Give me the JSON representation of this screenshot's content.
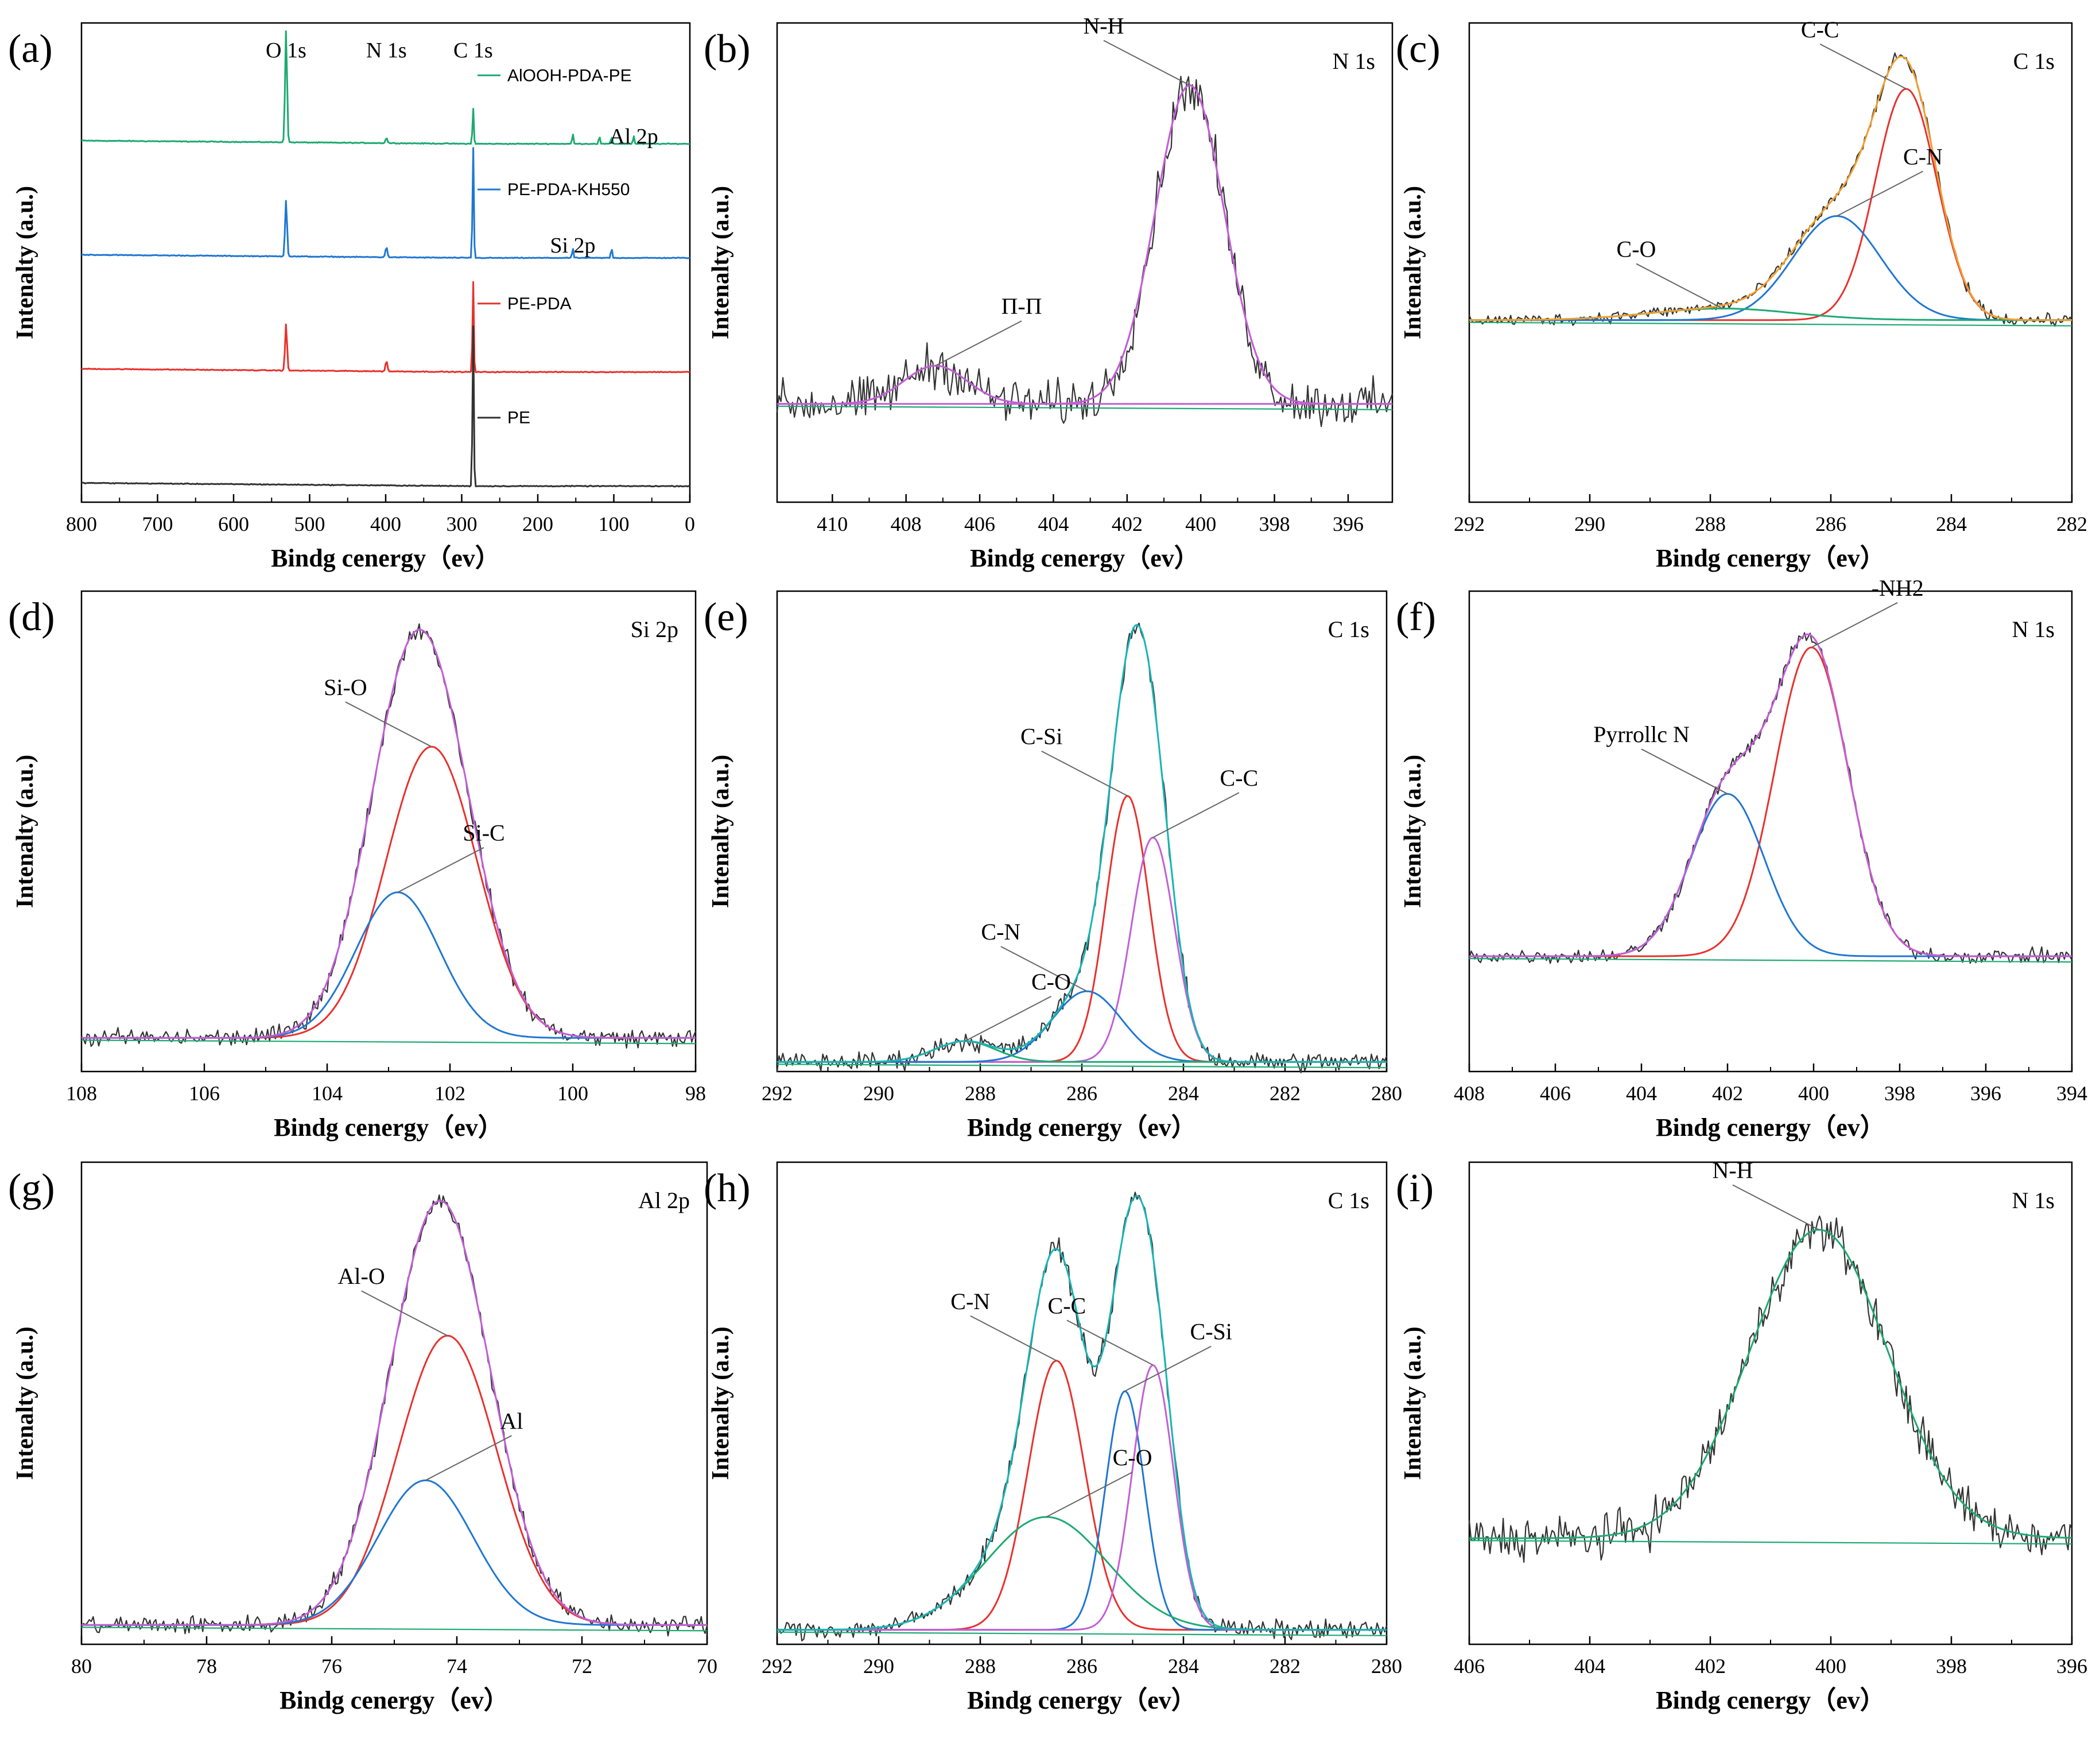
{
  "colors": {
    "black": "#222222",
    "gray": "#333333",
    "red": "#e8312c",
    "blue": "#1f77d2",
    "green": "#1daa72",
    "magenta": "#c25fd6",
    "orange": "#f0a030",
    "cyan": "#19b5b5",
    "olive": "#c8a000",
    "purple": "#a855c8"
  },
  "chart_data": [
    {
      "id": "a",
      "type": "line",
      "panel_label": "(a)",
      "xlabel": "Bindg cenergy（ev）",
      "ylabel": "Intenalty (a.u.)",
      "xlim": [
        800,
        0
      ],
      "xticks": [
        800,
        700,
        600,
        500,
        400,
        300,
        200,
        100,
        0
      ],
      "series": [
        {
          "name": "AlOOH-PDA-PE",
          "color": "green",
          "offset": 3.0,
          "peaks": [
            [
              531,
              1.1,
              3
            ],
            [
              399,
              0.05,
              3
            ],
            [
              285,
              0.35,
              2
            ],
            [
              154,
              0.1,
              2
            ],
            [
              119,
              0.08,
              2
            ],
            [
              103,
              0.07,
              2
            ],
            [
              74,
              0.08,
              2
            ]
          ]
        },
        {
          "name": "PE-PDA-KH550",
          "color": "blue",
          "offset": 2.0,
          "peaks": [
            [
              531,
              0.55,
              3
            ],
            [
              399,
              0.1,
              3
            ],
            [
              285,
              1.1,
              2
            ],
            [
              154,
              0.1,
              2
            ],
            [
              103,
              0.1,
              2
            ]
          ]
        },
        {
          "name": "PE-PDA",
          "color": "red",
          "offset": 1.0,
          "peaks": [
            [
              531,
              0.45,
              3
            ],
            [
              399,
              0.1,
              3
            ],
            [
              285,
              0.9,
              2
            ]
          ]
        },
        {
          "name": "PE",
          "color": "gray",
          "offset": 0.0,
          "peaks": [
            [
              285,
              1.6,
              2
            ]
          ]
        }
      ],
      "peak_labels": [
        {
          "text": "O 1s",
          "x": 531
        },
        {
          "text": "N 1s",
          "x": 399
        },
        {
          "text": "C 1s",
          "x": 285
        },
        {
          "text": "Al 2p",
          "x": 74
        },
        {
          "text": "Si 2p",
          "x": 154
        }
      ]
    },
    {
      "id": "b",
      "type": "line",
      "panel_label": "(b)",
      "corner_label": "N 1s",
      "xlabel": "Bindg cenergy（ev）",
      "ylabel": "Intenalty (a.u.)",
      "xlim": [
        411.5,
        394.8
      ],
      "xticks": [
        410,
        408,
        406,
        404,
        402,
        400,
        398,
        396
      ],
      "components": [
        {
          "name": "N-H",
          "center": 400.3,
          "fwhm": 2.2,
          "height": 1.0,
          "color": "magenta"
        },
        {
          "name": "Π-Π",
          "center": 407.2,
          "fwhm": 2.0,
          "height": 0.12,
          "color": "magenta"
        }
      ],
      "annotations": [
        {
          "text": "N-H",
          "x": 400.3
        },
        {
          "text": "Π-Π",
          "x": 407.2
        }
      ]
    },
    {
      "id": "c",
      "type": "line",
      "panel_label": "(c)",
      "corner_label": "C 1s",
      "xlabel": "Bindg cenergy（ev）",
      "ylabel": "Intenalty (a.u.)",
      "xlim": [
        292,
        282
      ],
      "xticks": [
        292,
        290,
        288,
        286,
        284,
        282
      ],
      "components": [
        {
          "name": "C-C",
          "center": 284.75,
          "fwhm": 1.2,
          "height": 1.0,
          "color": "red"
        },
        {
          "name": "C-N",
          "center": 285.9,
          "fwhm": 1.7,
          "height": 0.45,
          "color": "blue"
        },
        {
          "name": "C-O",
          "center": 287.8,
          "fwhm": 2.8,
          "height": 0.05,
          "color": "green"
        }
      ],
      "annotations": [
        {
          "text": "C-C",
          "x": 284.75
        },
        {
          "text": "C-N",
          "x": 285.9
        },
        {
          "text": "C-O",
          "x": 287.8
        }
      ]
    },
    {
      "id": "d",
      "type": "line",
      "panel_label": "(d)",
      "corner_label": "Si 2p",
      "xlabel": "Bindg cenergy（ev）",
      "ylabel": "Intenalty (a.u.)",
      "xlim": [
        108,
        98
      ],
      "xticks": [
        108,
        106,
        104,
        102,
        100,
        98
      ],
      "components": [
        {
          "name": "Si-O",
          "center": 102.3,
          "fwhm": 1.75,
          "height": 0.86,
          "color": "red"
        },
        {
          "name": "Si-C",
          "center": 102.85,
          "fwhm": 1.6,
          "height": 0.43,
          "color": "blue"
        }
      ],
      "annotations": [
        {
          "text": "Si-O",
          "x": 102.3
        },
        {
          "text": "Si-C",
          "x": 102.85
        }
      ]
    },
    {
      "id": "e",
      "type": "line",
      "panel_label": "(e)",
      "corner_label": "C 1s",
      "xlabel": "Bindg cenergy（ev）",
      "ylabel": "Intenalty (a.u.)",
      "xlim": [
        292,
        280
      ],
      "xticks": [
        292,
        290,
        288,
        286,
        284,
        282,
        280
      ],
      "components": [
        {
          "name": "C-Si",
          "center": 285.1,
          "fwhm": 1.0,
          "height": 0.64,
          "color": "red"
        },
        {
          "name": "C-C",
          "center": 284.6,
          "fwhm": 1.0,
          "height": 0.54,
          "color": "magenta"
        },
        {
          "name": "C-N",
          "center": 285.9,
          "fwhm": 1.6,
          "height": 0.17,
          "color": "blue"
        },
        {
          "name": "C-O",
          "center": 288.3,
          "fwhm": 1.4,
          "height": 0.05,
          "color": "green"
        }
      ],
      "annotations": [
        {
          "text": "C-Si",
          "x": 285.1
        },
        {
          "text": "C-C",
          "x": 284.6
        },
        {
          "text": "C-N",
          "x": 285.9
        },
        {
          "text": "C-O",
          "x": 288.3
        }
      ]
    },
    {
      "id": "f",
      "type": "line",
      "panel_label": "(f)",
      "corner_label": "N 1s",
      "xlabel": "Bindg cenergy（ev）",
      "ylabel": "Intenalty (a.u.)",
      "xlim": [
        408,
        394
      ],
      "xticks": [
        408,
        406,
        404,
        402,
        400,
        398,
        396,
        394
      ],
      "components": [
        {
          "name": "-NH2",
          "center": 400.05,
          "fwhm": 2.0,
          "height": 0.97,
          "color": "red"
        },
        {
          "name": "Pyrrollc N",
          "center": 402.0,
          "fwhm": 2.0,
          "height": 0.51,
          "color": "blue"
        }
      ],
      "annotations": [
        {
          "text": "Pyrrollc N",
          "x": 402.0
        },
        {
          "text": "-NH2",
          "x": 400.05
        }
      ]
    },
    {
      "id": "g",
      "type": "line",
      "panel_label": "(g)",
      "corner_label": "Al 2p",
      "xlabel": "Bindg cenergy（ev）",
      "ylabel": "Intenalty (a.u.)",
      "xlim": [
        80,
        70
      ],
      "xticks": [
        80,
        78,
        76,
        74,
        72,
        70
      ],
      "components": [
        {
          "name": "Al-O",
          "center": 74.15,
          "fwhm": 1.85,
          "height": 0.74,
          "color": "red"
        },
        {
          "name": "Al",
          "center": 74.5,
          "fwhm": 1.8,
          "height": 0.37,
          "color": "blue"
        }
      ],
      "annotations": [
        {
          "text": "Al-O",
          "x": 74.15
        },
        {
          "text": "Al",
          "x": 74.5
        }
      ]
    },
    {
      "id": "h",
      "type": "line",
      "panel_label": "(h)",
      "corner_label": "C 1s",
      "xlabel": "Bindg cenergy（ev）",
      "ylabel": "Intenalty (a.u.)",
      "xlim": [
        292,
        280
      ],
      "xticks": [
        292,
        290,
        288,
        286,
        284,
        282,
        280
      ],
      "components": [
        {
          "name": "C-N",
          "center": 286.5,
          "fwhm": 1.3,
          "height": 0.62,
          "color": "red"
        },
        {
          "name": "C-Si",
          "center": 285.15,
          "fwhm": 0.9,
          "height": 0.55,
          "color": "blue"
        },
        {
          "name": "C-C",
          "center": 284.6,
          "fwhm": 0.95,
          "height": 0.61,
          "color": "magenta"
        },
        {
          "name": "C-O",
          "center": 286.7,
          "fwhm": 2.8,
          "height": 0.26,
          "color": "green"
        }
      ],
      "annotations": [
        {
          "text": "C-N",
          "x": 286.5
        },
        {
          "text": "C-Si",
          "x": 285.15
        },
        {
          "text": "C-C",
          "x": 284.6
        },
        {
          "text": "C-O",
          "x": 286.7
        }
      ]
    },
    {
      "id": "i",
      "type": "line",
      "panel_label": "(i)",
      "corner_label": "N 1s",
      "xlabel": "Bindg cenergy（ev）",
      "ylabel": "Intenalty (a.u.)",
      "xlim": [
        406,
        396
      ],
      "xticks": [
        406,
        404,
        402,
        400,
        398,
        396
      ],
      "components": [
        {
          "name": "N-H",
          "center": 400.2,
          "fwhm": 2.7,
          "height": 1.0,
          "color": "green"
        }
      ],
      "annotations": [
        {
          "text": "N-H",
          "x": 400.2
        }
      ]
    }
  ]
}
